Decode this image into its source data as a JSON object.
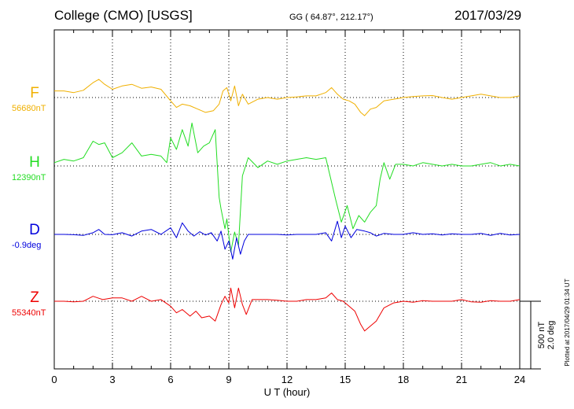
{
  "header": {
    "title": "College (CMO)  [USGS]",
    "coords": "GG ( 64.87°, 212.17°)",
    "date": "2017/03/29"
  },
  "chart_data": {
    "type": "line",
    "xlabel": "U T (hour)",
    "xlim": [
      0,
      24
    ],
    "xticks": [
      "0",
      "3",
      "6",
      "9",
      "12",
      "15",
      "18",
      "21",
      "24"
    ],
    "grid": true,
    "scale_bar": [
      "500 nT",
      "2.0 deg"
    ],
    "plotted_note": "Plotted at 2017/04/29 01:34 UT",
    "series": [
      {
        "name": "F",
        "baseline_label": "56680nT",
        "color": "#f0b000",
        "x": [
          0,
          0.5,
          1,
          1.5,
          2,
          2.3,
          2.6,
          3,
          3.5,
          4,
          4.5,
          5,
          5.5,
          6,
          6.3,
          6.6,
          7,
          7.4,
          7.8,
          8.2,
          8.5,
          8.7,
          8.9,
          9.1,
          9.3,
          9.5,
          9.7,
          10,
          10.5,
          11,
          11.5,
          12,
          12.5,
          13,
          13.5,
          14,
          14.3,
          14.6,
          14.9,
          15.2,
          15.5,
          15.8,
          16,
          16.3,
          16.6,
          17,
          17.5,
          18,
          18.5,
          19,
          19.5,
          20,
          20.5,
          21,
          21.5,
          22,
          22.5,
          23,
          23.5,
          24
        ],
        "y": [
          20,
          20,
          15,
          22,
          45,
          55,
          40,
          25,
          35,
          40,
          28,
          32,
          25,
          -10,
          -30,
          -20,
          -25,
          -35,
          -45,
          -40,
          -20,
          20,
          30,
          -10,
          35,
          -25,
          10,
          -20,
          -5,
          0,
          -5,
          0,
          2,
          5,
          5,
          15,
          30,
          10,
          -5,
          -10,
          -20,
          -45,
          -55,
          -35,
          -30,
          -10,
          -5,
          0,
          3,
          5,
          6,
          0,
          -5,
          0,
          5,
          10,
          5,
          0,
          0,
          5
        ]
      },
      {
        "name": "H",
        "baseline_label": "12390nT",
        "color": "#22dd22",
        "x": [
          0,
          0.5,
          1,
          1.5,
          2,
          2.3,
          2.6,
          3,
          3.5,
          4,
          4.5,
          5,
          5.5,
          5.8,
          6,
          6.3,
          6.6,
          6.9,
          7.1,
          7.4,
          7.7,
          8,
          8.3,
          8.5,
          8.6,
          8.8,
          8.9,
          9.1,
          9.3,
          9.5,
          9.7,
          10,
          10.5,
          11,
          11.5,
          12,
          12.5,
          13,
          13.5,
          14,
          14.5,
          14.8,
          15.1,
          15.4,
          15.7,
          16,
          16.3,
          16.6,
          16.8,
          17,
          17.3,
          17.6,
          18,
          18.5,
          19,
          19.5,
          20,
          20.5,
          21,
          21.5,
          22,
          22.5,
          23,
          23.5,
          24
        ],
        "y": [
          10,
          20,
          15,
          25,
          75,
          65,
          70,
          25,
          40,
          70,
          30,
          35,
          30,
          10,
          85,
          50,
          110,
          60,
          130,
          40,
          60,
          70,
          110,
          -95,
          -130,
          -190,
          -160,
          -260,
          -200,
          -240,
          -30,
          25,
          -5,
          15,
          5,
          15,
          20,
          25,
          20,
          25,
          -100,
          -170,
          -120,
          -190,
          -150,
          -170,
          -140,
          -120,
          -40,
          10,
          -40,
          5,
          5,
          0,
          10,
          5,
          0,
          5,
          0,
          0,
          5,
          10,
          0,
          5,
          0
        ]
      },
      {
        "name": "D",
        "baseline_label": "-0.9deg",
        "color": "#0000dd",
        "x": [
          0,
          0.5,
          1,
          1.5,
          2,
          2.3,
          2.6,
          3,
          3.5,
          4,
          4.5,
          5,
          5.5,
          6,
          6.3,
          6.6,
          6.9,
          7.2,
          7.5,
          7.8,
          8.1,
          8.4,
          8.6,
          8.8,
          9,
          9.2,
          9.4,
          9.6,
          9.8,
          10,
          10.5,
          11,
          11.5,
          12,
          12.5,
          13,
          13.5,
          14,
          14.3,
          14.6,
          14.8,
          15,
          15.3,
          15.6,
          16,
          16.3,
          16.6,
          17,
          17.5,
          18,
          18.5,
          19,
          19.5,
          20,
          20.5,
          21,
          21.5,
          22,
          22.5,
          23,
          23.5,
          24
        ],
        "y": [
          0,
          0,
          -1,
          -3,
          5,
          15,
          0,
          -1,
          5,
          -5,
          10,
          15,
          0,
          20,
          -10,
          35,
          10,
          -5,
          8,
          -2,
          5,
          -20,
          10,
          -45,
          -20,
          -75,
          -10,
          -60,
          -20,
          0,
          0,
          0,
          0,
          -2,
          0,
          0,
          0,
          5,
          -20,
          40,
          -10,
          25,
          -10,
          15,
          10,
          5,
          -5,
          3,
          0,
          0,
          5,
          0,
          2,
          -2,
          2,
          0,
          0,
          3,
          -3,
          3,
          -2,
          0
        ]
      },
      {
        "name": "Z",
        "baseline_label": "55340nT",
        "color": "#ee0000",
        "x": [
          0,
          0.5,
          1,
          1.5,
          2,
          2.5,
          3,
          3.5,
          4,
          4.5,
          5,
          5.5,
          6,
          6.3,
          6.6,
          7,
          7.3,
          7.6,
          8,
          8.3,
          8.6,
          8.8,
          9,
          9.1,
          9.3,
          9.5,
          9.7,
          9.9,
          10.2,
          10.5,
          11,
          11.5,
          12,
          12.5,
          13,
          13.5,
          14,
          14.3,
          14.6,
          14.9,
          15.2,
          15.5,
          15.8,
          16,
          16.3,
          16.6,
          17,
          17.5,
          18,
          18.5,
          19,
          19.5,
          20,
          20.5,
          21,
          21.5,
          22,
          22.5,
          23,
          23.5,
          24
        ],
        "y": [
          0,
          0,
          -2,
          0,
          15,
          5,
          10,
          10,
          0,
          15,
          0,
          5,
          -15,
          -35,
          -25,
          -45,
          -30,
          -50,
          -45,
          -60,
          -10,
          15,
          -5,
          40,
          -20,
          40,
          -10,
          -40,
          5,
          5,
          5,
          3,
          0,
          0,
          5,
          5,
          10,
          25,
          5,
          0,
          -15,
          -30,
          -70,
          -90,
          -75,
          -60,
          -20,
          -5,
          0,
          -3,
          2,
          0,
          0,
          0,
          5,
          -2,
          -3,
          2,
          0,
          0,
          5
        ]
      }
    ]
  }
}
